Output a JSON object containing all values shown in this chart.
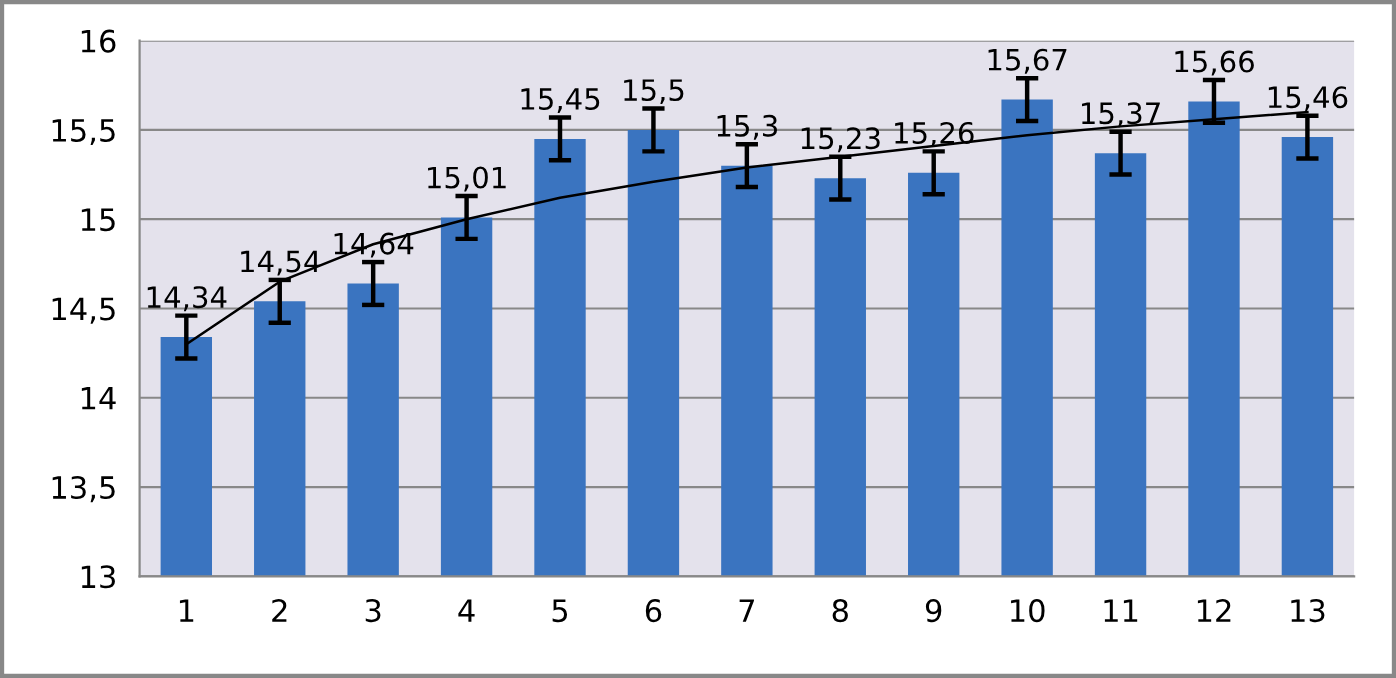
{
  "chart_data": {
    "type": "bar",
    "categories": [
      "1",
      "2",
      "3",
      "4",
      "5",
      "6",
      "7",
      "8",
      "9",
      "10",
      "11",
      "12",
      "13"
    ],
    "series": [
      {
        "color": "#3a74c0",
        "values": [
          14.34,
          14.54,
          14.64,
          15.01,
          15.45,
          15.5,
          15.3,
          15.23,
          15.26,
          15.67,
          15.37,
          15.66,
          15.46
        ],
        "errors": [
          0.12,
          0.12,
          0.12,
          0.12,
          0.12,
          0.12,
          0.12,
          0.12,
          0.12,
          0.12,
          0.12,
          0.12,
          0.12
        ],
        "value_labels": [
          "14,34",
          "14,54",
          "14,64",
          "15,01",
          "15,45",
          "15,5",
          "15,3",
          "15,23",
          "15,26",
          "15,67",
          "15,37",
          "15,66",
          "15,46"
        ]
      },
      {
        "type": "line",
        "color": "#000000",
        "values": [
          14.3,
          14.65,
          14.86,
          15.0,
          15.12,
          15.21,
          15.29,
          15.35,
          15.41,
          15.47,
          15.52,
          15.56,
          15.6
        ]
      }
    ],
    "ylim": [
      13,
      16
    ],
    "yticks": [
      {
        "value": 13,
        "label": "13"
      },
      {
        "value": 13.5,
        "label": "13,5"
      },
      {
        "value": 14,
        "label": "14"
      },
      {
        "value": 14.5,
        "label": "14,5"
      },
      {
        "value": 15,
        "label": "15"
      },
      {
        "value": 15.5,
        "label": "15,5"
      },
      {
        "value": 16,
        "label": "16"
      }
    ],
    "grid": "y",
    "legend": false
  }
}
